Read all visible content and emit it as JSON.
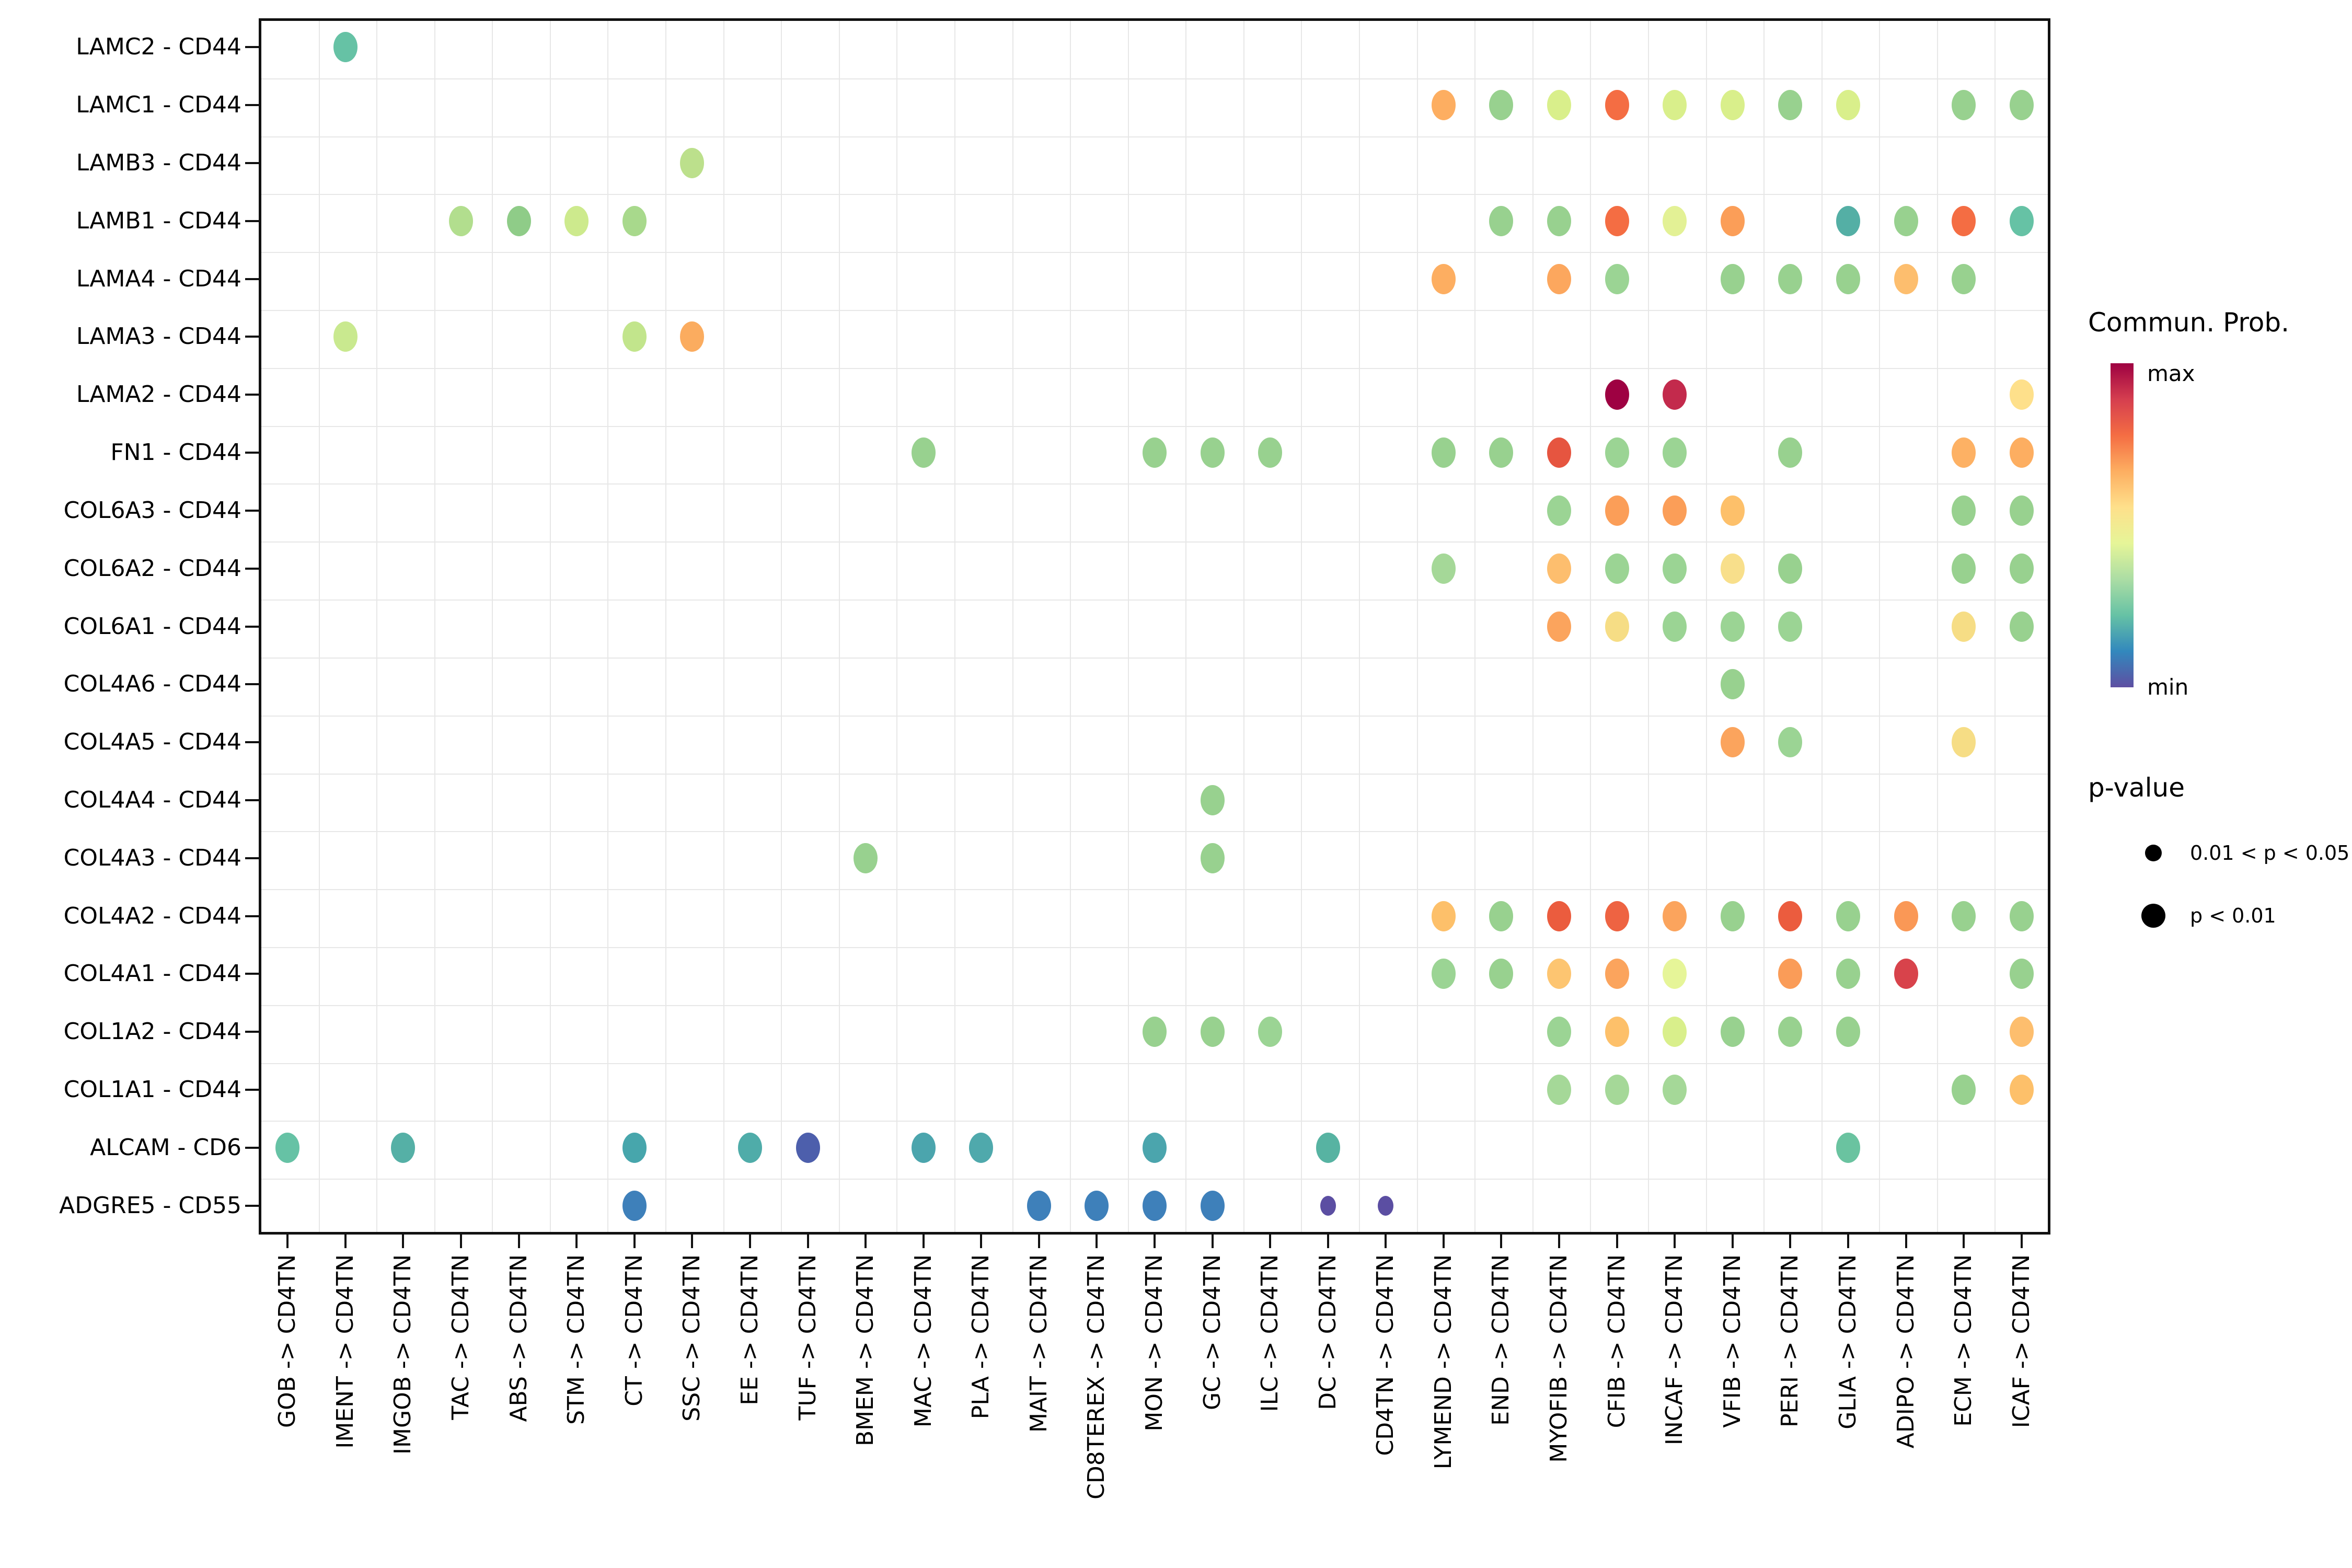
{
  "chart_data": {
    "type": "bubble",
    "title": "",
    "x_categories": [
      "GOB -> CD4TN",
      "IMENT -> CD4TN",
      "IMGOB -> CD4TN",
      "TAC -> CD4TN",
      "ABS -> CD4TN",
      "STM -> CD4TN",
      "CT -> CD4TN",
      "SSC -> CD4TN",
      "EE -> CD4TN",
      "TUF -> CD4TN",
      "BMEM -> CD4TN",
      "MAC -> CD4TN",
      "PLA -> CD4TN",
      "MAIT -> CD4TN",
      "CD8TEREX -> CD4TN",
      "MON -> CD4TN",
      "GC -> CD4TN",
      "ILC -> CD4TN",
      "DC -> CD4TN",
      "CD4TN -> CD4TN",
      "LYMEND -> CD4TN",
      "END -> CD4TN",
      "MYOFIB -> CD4TN",
      "CFIB -> CD4TN",
      "INCAF -> CD4TN",
      "VFIB -> CD4TN",
      "PERI -> CD4TN",
      "GLIA -> CD4TN",
      "ADIPO -> CD4TN",
      "ECM -> CD4TN",
      "ICAF -> CD4TN"
    ],
    "y_categories": [
      "LAMC2 - CD44",
      "LAMC1 - CD44",
      "LAMB3 - CD44",
      "LAMB1 - CD44",
      "LAMA4 - CD44",
      "LAMA3 - CD44",
      "LAMA2 - CD44",
      "FN1 - CD44",
      "COL6A3 - CD44",
      "COL6A2 - CD44",
      "COL6A1 - CD44",
      "COL4A6 - CD44",
      "COL4A5 - CD44",
      "COL4A4 - CD44",
      "COL4A3 - CD44",
      "COL4A2 - CD44",
      "COL4A1 - CD44",
      "COL1A2 - CD44",
      "COL1A1 - CD44",
      "ALCAM - CD6",
      "ADGRE5 - CD55"
    ],
    "points_format": [
      "row_index",
      "col_index",
      "color",
      "size L=p<0.01 S=0.01<p<0.05"
    ],
    "points": [
      [
        0,
        1,
        "#66C2A5",
        "L"
      ],
      [
        1,
        20,
        "#FDAE61",
        "L"
      ],
      [
        1,
        21,
        "#98D18F",
        "L"
      ],
      [
        1,
        22,
        "#D9EF8B",
        "L"
      ],
      [
        1,
        23,
        "#F46D43",
        "L"
      ],
      [
        1,
        24,
        "#D9EF8B",
        "L"
      ],
      [
        1,
        25,
        "#D9EF8B",
        "L"
      ],
      [
        1,
        26,
        "#98D18F",
        "L"
      ],
      [
        1,
        27,
        "#D9EF8B",
        "L"
      ],
      [
        1,
        29,
        "#98D18F",
        "L"
      ],
      [
        1,
        30,
        "#98D18F",
        "L"
      ],
      [
        2,
        7,
        "#BCE08C",
        "L"
      ],
      [
        3,
        3,
        "#B2DE8E",
        "L"
      ],
      [
        3,
        4,
        "#8FCC88",
        "L"
      ],
      [
        3,
        5,
        "#CDEA8D",
        "L"
      ],
      [
        3,
        6,
        "#A8D98C",
        "L"
      ],
      [
        3,
        21,
        "#98D18F",
        "L"
      ],
      [
        3,
        22,
        "#98D18F",
        "L"
      ],
      [
        3,
        23,
        "#F46D43",
        "L"
      ],
      [
        3,
        24,
        "#E3F195",
        "L"
      ],
      [
        3,
        25,
        "#FB9E58",
        "L"
      ],
      [
        3,
        27,
        "#54AFA5",
        "L"
      ],
      [
        3,
        28,
        "#98D18F",
        "L"
      ],
      [
        3,
        29,
        "#F46D43",
        "L"
      ],
      [
        3,
        30,
        "#66C2A5",
        "L"
      ],
      [
        4,
        20,
        "#FDAE61",
        "L"
      ],
      [
        4,
        22,
        "#FCA75E",
        "L"
      ],
      [
        4,
        23,
        "#9BD494",
        "L"
      ],
      [
        4,
        25,
        "#98D18F",
        "L"
      ],
      [
        4,
        26,
        "#98D18F",
        "L"
      ],
      [
        4,
        27,
        "#98D18F",
        "L"
      ],
      [
        4,
        28,
        "#FDBE6E",
        "L"
      ],
      [
        4,
        29,
        "#98D18F",
        "L"
      ],
      [
        5,
        1,
        "#C9E98F",
        "L"
      ],
      [
        5,
        6,
        "#C2E58C",
        "L"
      ],
      [
        5,
        7,
        "#FBAC5F",
        "L"
      ],
      [
        6,
        23,
        "#9E0142",
        "L"
      ],
      [
        6,
        24,
        "#C32A4C",
        "L"
      ],
      [
        6,
        30,
        "#FEE08B",
        "L"
      ],
      [
        7,
        11,
        "#98D18F",
        "L"
      ],
      [
        7,
        15,
        "#98D18F",
        "L"
      ],
      [
        7,
        16,
        "#98D18F",
        "L"
      ],
      [
        7,
        17,
        "#98D18F",
        "L"
      ],
      [
        7,
        20,
        "#98D18F",
        "L"
      ],
      [
        7,
        21,
        "#98D18F",
        "L"
      ],
      [
        7,
        22,
        "#E65540",
        "L"
      ],
      [
        7,
        23,
        "#9BD494",
        "L"
      ],
      [
        7,
        24,
        "#9BD494",
        "L"
      ],
      [
        7,
        26,
        "#98D18F",
        "L"
      ],
      [
        7,
        29,
        "#FDB164",
        "L"
      ],
      [
        7,
        30,
        "#FDAE61",
        "L"
      ],
      [
        8,
        22,
        "#9BD494",
        "L"
      ],
      [
        8,
        23,
        "#FB9E58",
        "L"
      ],
      [
        8,
        24,
        "#FB9E58",
        "L"
      ],
      [
        8,
        25,
        "#FDC06A",
        "L"
      ],
      [
        8,
        29,
        "#98D18F",
        "L"
      ],
      [
        8,
        30,
        "#98D18F",
        "L"
      ],
      [
        9,
        20,
        "#A5D898",
        "L"
      ],
      [
        9,
        22,
        "#FDBE6E",
        "L"
      ],
      [
        9,
        23,
        "#9BD494",
        "L"
      ],
      [
        9,
        24,
        "#9BD494",
        "L"
      ],
      [
        9,
        25,
        "#F8DF8B",
        "L"
      ],
      [
        9,
        26,
        "#98D18F",
        "L"
      ],
      [
        9,
        29,
        "#98D18F",
        "L"
      ],
      [
        9,
        30,
        "#98D18F",
        "L"
      ],
      [
        10,
        22,
        "#FBA45D",
        "L"
      ],
      [
        10,
        23,
        "#F6DD85",
        "L"
      ],
      [
        10,
        24,
        "#9BD494",
        "L"
      ],
      [
        10,
        25,
        "#9BD494",
        "L"
      ],
      [
        10,
        26,
        "#9BD494",
        "L"
      ],
      [
        10,
        29,
        "#F6DD85",
        "L"
      ],
      [
        10,
        30,
        "#98D18F",
        "L"
      ],
      [
        11,
        25,
        "#98D18F",
        "L"
      ],
      [
        12,
        25,
        "#FBA45D",
        "L"
      ],
      [
        12,
        26,
        "#9BD494",
        "L"
      ],
      [
        12,
        29,
        "#F6DD85",
        "L"
      ],
      [
        13,
        16,
        "#98D18F",
        "L"
      ],
      [
        14,
        10,
        "#98D18F",
        "L"
      ],
      [
        14,
        16,
        "#98D18F",
        "L"
      ],
      [
        15,
        20,
        "#FDC06A",
        "L"
      ],
      [
        15,
        21,
        "#98D18F",
        "L"
      ],
      [
        15,
        22,
        "#EB5C3E",
        "L"
      ],
      [
        15,
        23,
        "#EE6342",
        "L"
      ],
      [
        15,
        24,
        "#FBA45D",
        "L"
      ],
      [
        15,
        25,
        "#98D18F",
        "L"
      ],
      [
        15,
        26,
        "#EB5C3E",
        "L"
      ],
      [
        15,
        27,
        "#98D18F",
        "L"
      ],
      [
        15,
        28,
        "#FA9856",
        "L"
      ],
      [
        15,
        29,
        "#98D18F",
        "L"
      ],
      [
        15,
        30,
        "#98D18F",
        "L"
      ],
      [
        16,
        20,
        "#9BD494",
        "L"
      ],
      [
        16,
        21,
        "#98D18F",
        "L"
      ],
      [
        16,
        22,
        "#FDC571",
        "L"
      ],
      [
        16,
        23,
        "#FBA45D",
        "L"
      ],
      [
        16,
        24,
        "#E6F598",
        "L"
      ],
      [
        16,
        26,
        "#FA9C58",
        "L"
      ],
      [
        16,
        27,
        "#98D18F",
        "L"
      ],
      [
        16,
        28,
        "#D8434B",
        "L"
      ],
      [
        16,
        30,
        "#98D18F",
        "L"
      ],
      [
        17,
        15,
        "#98D18F",
        "L"
      ],
      [
        17,
        16,
        "#98D18F",
        "L"
      ],
      [
        17,
        17,
        "#9BD494",
        "L"
      ],
      [
        17,
        22,
        "#9BD494",
        "L"
      ],
      [
        17,
        23,
        "#FDC06A",
        "L"
      ],
      [
        17,
        24,
        "#D9EF8B",
        "L"
      ],
      [
        17,
        25,
        "#98D18F",
        "L"
      ],
      [
        17,
        26,
        "#98D18F",
        "L"
      ],
      [
        17,
        27,
        "#98D18F",
        "L"
      ],
      [
        17,
        30,
        "#FDBE6E",
        "L"
      ],
      [
        18,
        22,
        "#A5D898",
        "L"
      ],
      [
        18,
        23,
        "#A5D898",
        "L"
      ],
      [
        18,
        24,
        "#A5D898",
        "L"
      ],
      [
        18,
        29,
        "#98D18F",
        "L"
      ],
      [
        18,
        30,
        "#FDC06A",
        "L"
      ],
      [
        19,
        0,
        "#66C2A5",
        "L"
      ],
      [
        19,
        2,
        "#55B0A6",
        "L"
      ],
      [
        19,
        6,
        "#47A6AC",
        "L"
      ],
      [
        19,
        8,
        "#4FACA9",
        "L"
      ],
      [
        19,
        9,
        "#4D5FAC",
        "L"
      ],
      [
        19,
        11,
        "#4BA5AD",
        "L"
      ],
      [
        19,
        12,
        "#4FA9AC",
        "L"
      ],
      [
        19,
        15,
        "#4BA5AD",
        "L"
      ],
      [
        19,
        18,
        "#57B3A2",
        "L"
      ],
      [
        19,
        27,
        "#6AC3A0",
        "L"
      ],
      [
        20,
        6,
        "#3E80BA",
        "L"
      ],
      [
        20,
        13,
        "#3E80BA",
        "L"
      ],
      [
        20,
        14,
        "#3E80BA",
        "L"
      ],
      [
        20,
        15,
        "#3E80BA",
        "L"
      ],
      [
        20,
        16,
        "#3E80BA",
        "L"
      ],
      [
        20,
        18,
        "#5B4EA2",
        "S"
      ],
      [
        20,
        19,
        "#5B4EA2",
        "S"
      ]
    ],
    "legend": {
      "color_title": "Commun. Prob.",
      "color_max_label": "max",
      "color_min_label": "min",
      "gradient_top_to_bottom": [
        "#9E0142",
        "#D53E4F",
        "#F46D43",
        "#FDAE61",
        "#FEE08B",
        "#E6F598",
        "#ABDDA4",
        "#66C2A5",
        "#3288BD",
        "#5E4FA2"
      ],
      "size_title": "p-value",
      "size_items": [
        {
          "label": "0.01 < p < 0.05",
          "size": "small"
        },
        {
          "label": "p < 0.01",
          "size": "large"
        }
      ]
    },
    "layout": {
      "grid": "on",
      "x_tick_rotation": 90,
      "legend_position": "right"
    }
  }
}
